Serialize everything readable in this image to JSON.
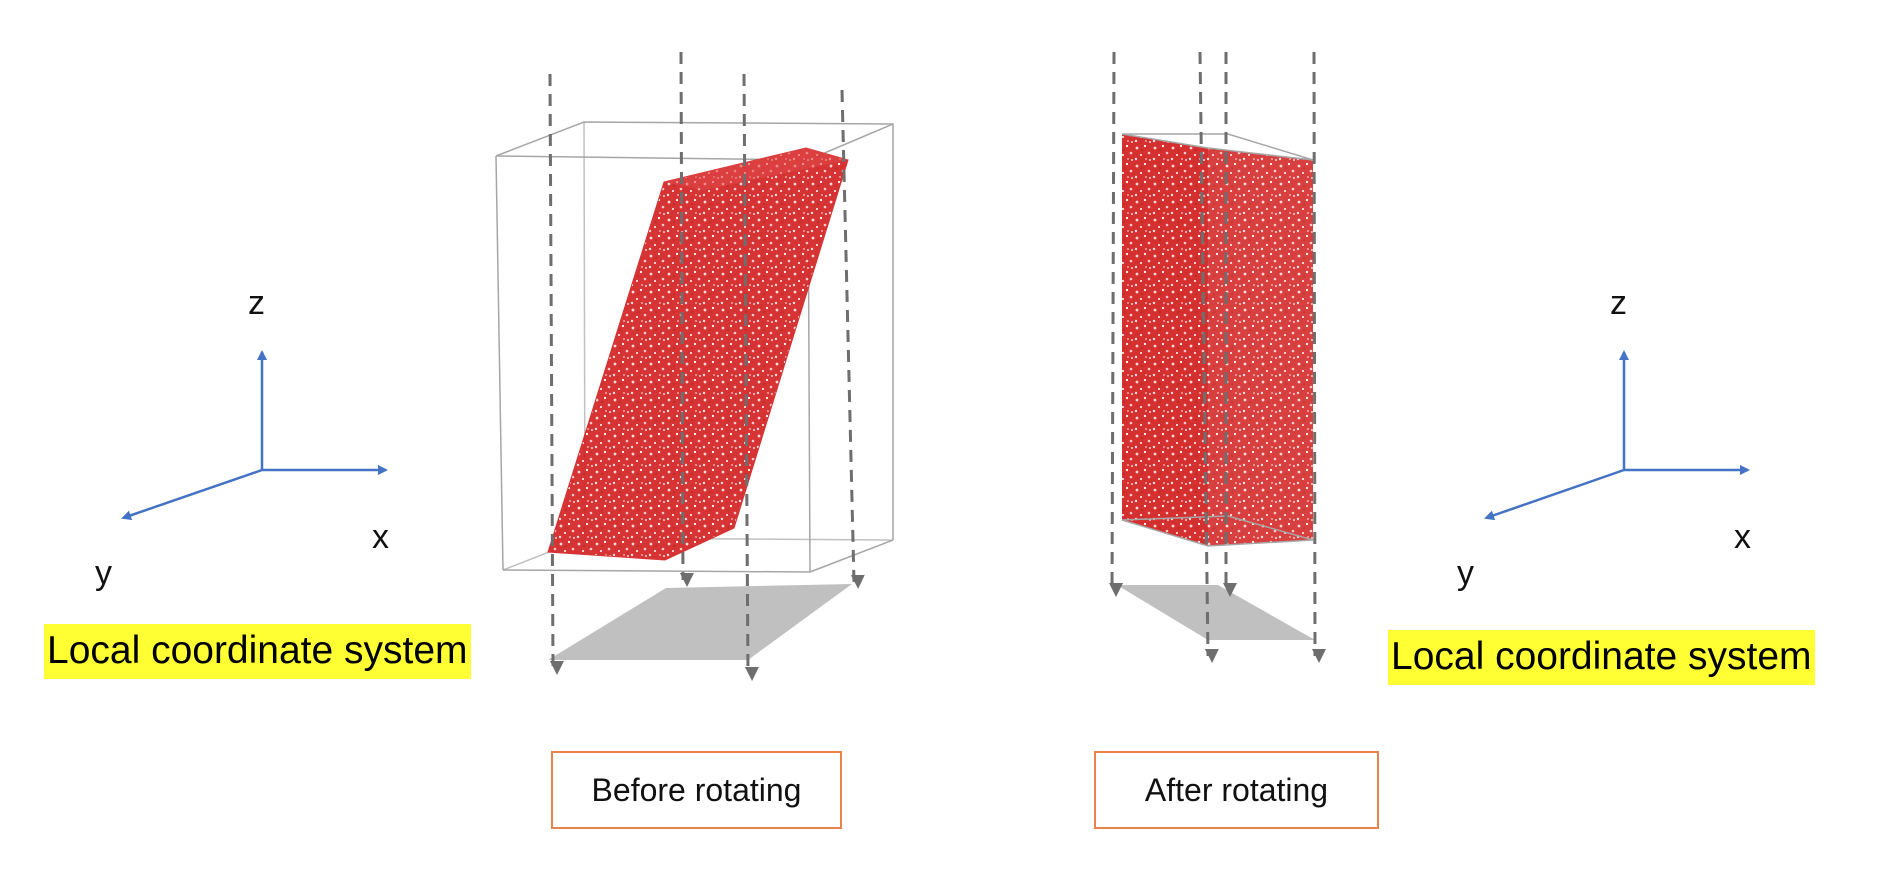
{
  "left_axes": {
    "z": "z",
    "x": "x",
    "y": "y"
  },
  "right_axes": {
    "z": "z",
    "x": "x",
    "y": "y"
  },
  "left_caption": "Local coordinate system",
  "right_caption": "Local coordinate system",
  "before_label": "Before rotating",
  "after_label": "After rotating",
  "colors": {
    "axis": "#4472c4",
    "particles": "#d42a2a",
    "box_outline": "#a6a6a6",
    "projection_shadow": "#c0c0c0",
    "dashed_arrow": "#6e6e6e",
    "caption_highlight": "#ffff33",
    "label_border": "#e8834b"
  }
}
